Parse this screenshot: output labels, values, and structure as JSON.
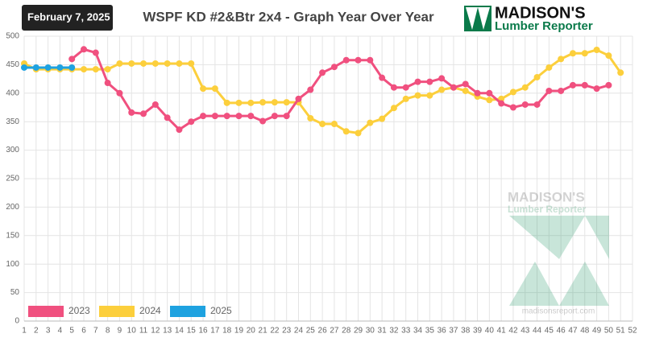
{
  "header": {
    "date": "February 7, 2025"
  },
  "logo": {
    "name": "MADISON'S",
    "subtitle": "Lumber Reporter"
  },
  "watermark": {
    "name": "MADISON'S",
    "subtitle": "Lumber Reporter",
    "url": "madisonsreport.com"
  },
  "chart_data": {
    "type": "line",
    "title": "WSPF KD #2&Btr 2x4 - Graph Year Over Year",
    "x": [
      1,
      2,
      3,
      4,
      5,
      6,
      7,
      8,
      9,
      10,
      11,
      12,
      13,
      14,
      15,
      16,
      17,
      18,
      19,
      20,
      21,
      22,
      23,
      24,
      25,
      26,
      27,
      28,
      29,
      30,
      31,
      32,
      33,
      34,
      35,
      36,
      37,
      38,
      39,
      40,
      41,
      42,
      43,
      44,
      45,
      46,
      47,
      48,
      49,
      50,
      51,
      52
    ],
    "series": [
      {
        "name": "2023",
        "color": "#f0507f",
        "values": [
          null,
          null,
          null,
          null,
          460,
          477,
          471,
          418,
          400,
          366,
          364,
          380,
          357,
          336,
          350,
          360,
          360,
          360,
          360,
          360,
          351,
          360,
          360,
          390,
          406,
          436,
          446,
          458,
          458,
          458,
          427,
          410,
          410,
          420,
          420,
          426,
          410,
          416,
          400,
          400,
          382,
          375,
          380,
          380,
          404,
          404,
          414,
          414,
          408,
          414,
          null,
          null
        ]
      },
      {
        "name": "2024",
        "color": "#fccf3c",
        "values": [
          452,
          442,
          442,
          442,
          442,
          442,
          442,
          442,
          452,
          452,
          452,
          452,
          452,
          452,
          452,
          408,
          408,
          383,
          383,
          383,
          384,
          384,
          384,
          384,
          356,
          346,
          346,
          333,
          330,
          348,
          355,
          374,
          390,
          396,
          396,
          406,
          410,
          404,
          394,
          388,
          390,
          402,
          410,
          428,
          445,
          460,
          470,
          470,
          476,
          466,
          436,
          null
        ]
      },
      {
        "name": "2025",
        "color": "#1ea2e0",
        "values": [
          445,
          445,
          445,
          445,
          445,
          null,
          null,
          null,
          null,
          null,
          null,
          null,
          null,
          null,
          null,
          null,
          null,
          null,
          null,
          null,
          null,
          null,
          null,
          null,
          null,
          null,
          null,
          null,
          null,
          null,
          null,
          null,
          null,
          null,
          null,
          null,
          null,
          null,
          null,
          null,
          null,
          null,
          null,
          null,
          null,
          null,
          null,
          null,
          null,
          null,
          null,
          null
        ]
      }
    ],
    "xlim": [
      1,
      52
    ],
    "xticks": [
      1,
      2,
      3,
      4,
      5,
      6,
      7,
      8,
      9,
      10,
      11,
      12,
      13,
      14,
      15,
      16,
      17,
      18,
      19,
      20,
      21,
      22,
      23,
      24,
      25,
      26,
      27,
      28,
      29,
      30,
      31,
      32,
      33,
      34,
      35,
      36,
      37,
      38,
      39,
      40,
      41,
      42,
      43,
      44,
      45,
      46,
      47,
      48,
      49,
      50,
      51,
      52
    ],
    "ylim": [
      0,
      500
    ],
    "yticks": [
      0,
      50,
      100,
      150,
      200,
      250,
      300,
      350,
      400,
      450,
      500
    ],
    "grid": true,
    "legend": "bottom-left"
  }
}
